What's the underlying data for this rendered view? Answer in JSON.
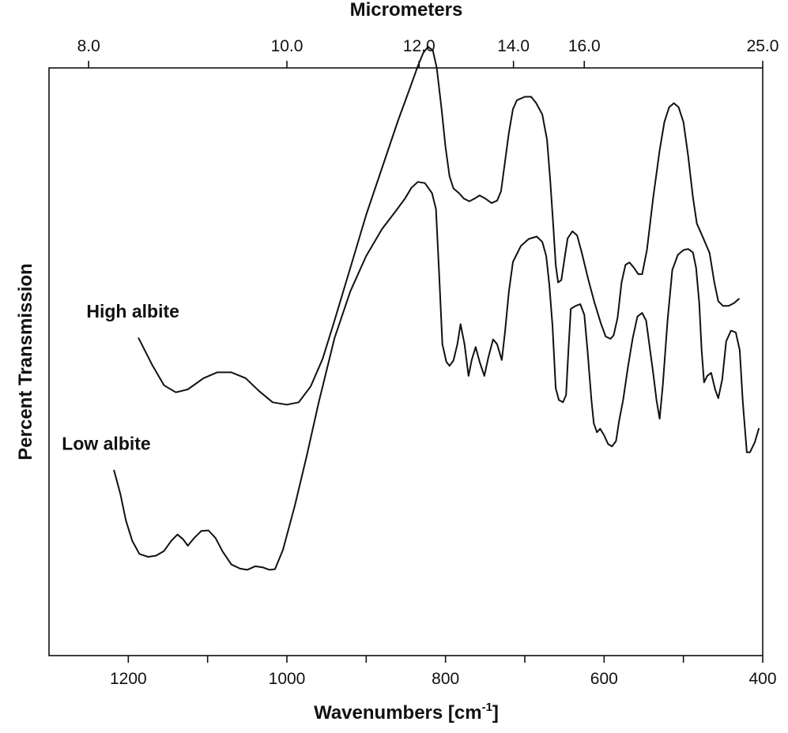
{
  "chart_data": {
    "type": "line",
    "title": "",
    "xlabel": "Wavenumbers [cm",
    "xlabel_sup": "-1",
    "xlabel_end": "]",
    "ylabel": "Percent Transmission",
    "top_axis_label": "Micrometers",
    "xlim": [
      1300,
      400
    ],
    "ylim": [
      0,
      100
    ],
    "grid": false,
    "x_ticks": [
      {
        "value": 1200,
        "label": "1200"
      },
      {
        "value": 1000,
        "label": "1000"
      },
      {
        "value": 800,
        "label": "800"
      },
      {
        "value": 600,
        "label": "600"
      },
      {
        "value": 400,
        "label": "400"
      }
    ],
    "x_minor_ticks": [
      1100,
      900,
      700,
      500
    ],
    "top_ticks": [
      {
        "value": 8.0,
        "label": "8.0"
      },
      {
        "value": 10.0,
        "label": "10.0"
      },
      {
        "value": 12.0,
        "label": "12.0"
      },
      {
        "value": 14.0,
        "label": "14.0"
      },
      {
        "value": 16.0,
        "label": "16.0"
      },
      {
        "value": 25.0,
        "label": "25.0"
      }
    ],
    "series": [
      {
        "name": "High albite",
        "label_anchor": [
          1187,
          54
        ],
        "points": [
          [
            1187,
            54
          ],
          [
            1170,
            49.5
          ],
          [
            1155,
            46
          ],
          [
            1140,
            44.8
          ],
          [
            1125,
            45.3
          ],
          [
            1105,
            47.2
          ],
          [
            1088,
            48.2
          ],
          [
            1070,
            48.2
          ],
          [
            1052,
            47.2
          ],
          [
            1035,
            45
          ],
          [
            1018,
            43.1
          ],
          [
            1000,
            42.7
          ],
          [
            985,
            43.1
          ],
          [
            970,
            45.8
          ],
          [
            955,
            50.5
          ],
          [
            940,
            57
          ],
          [
            920,
            66
          ],
          [
            900,
            75
          ],
          [
            880,
            83
          ],
          [
            860,
            91
          ],
          [
            845,
            96.5
          ],
          [
            835,
            100.3
          ],
          [
            828,
            102.6
          ],
          [
            822,
            103.6
          ],
          [
            816,
            103
          ],
          [
            811,
            100
          ],
          [
            805,
            93
          ],
          [
            800,
            86.5
          ],
          [
            795,
            81.6
          ],
          [
            790,
            79.5
          ],
          [
            783,
            78.7
          ],
          [
            777,
            77.8
          ],
          [
            770,
            77.3
          ],
          [
            763,
            77.8
          ],
          [
            757,
            78.3
          ],
          [
            750,
            77.8
          ],
          [
            742,
            77
          ],
          [
            735,
            77.4
          ],
          [
            730,
            79
          ],
          [
            725,
            84
          ],
          [
            720,
            89
          ],
          [
            715,
            93
          ],
          [
            710,
            94.5
          ],
          [
            700,
            95.1
          ],
          [
            692,
            95.1
          ],
          [
            686,
            94.1
          ],
          [
            678,
            92.1
          ],
          [
            672,
            87.8
          ],
          [
            668,
            81
          ],
          [
            664,
            73
          ],
          [
            661,
            66.5
          ],
          [
            658,
            63.5
          ],
          [
            654,
            63.9
          ],
          [
            650,
            67.5
          ],
          [
            646,
            71
          ],
          [
            640,
            72.2
          ],
          [
            634,
            71.5
          ],
          [
            628,
            68.5
          ],
          [
            620,
            64
          ],
          [
            612,
            60
          ],
          [
            604,
            56.5
          ],
          [
            598,
            54.3
          ],
          [
            592,
            53.9
          ],
          [
            588,
            54.5
          ],
          [
            583,
            57.5
          ],
          [
            578,
            63.5
          ],
          [
            573,
            66.5
          ],
          [
            568,
            66.9
          ],
          [
            563,
            66.1
          ],
          [
            557,
            64.9
          ],
          [
            552,
            64.9
          ],
          [
            546,
            69
          ],
          [
            538,
            78
          ],
          [
            530,
            86
          ],
          [
            524,
            90.8
          ],
          [
            518,
            93.3
          ],
          [
            512,
            94
          ],
          [
            506,
            93.3
          ],
          [
            500,
            90.8
          ],
          [
            494,
            85
          ],
          [
            488,
            78
          ],
          [
            483,
            73.5
          ],
          [
            478,
            72
          ],
          [
            473,
            70.4
          ],
          [
            467,
            68.5
          ],
          [
            461,
            63.5
          ],
          [
            456,
            60.3
          ],
          [
            450,
            59.5
          ],
          [
            443,
            59.5
          ],
          [
            436,
            60
          ],
          [
            430,
            60.7
          ]
        ]
      },
      {
        "name": "Low albite",
        "label_anchor": [
          1218,
          31.5
        ],
        "points": [
          [
            1218,
            31.5
          ],
          [
            1210,
            27.5
          ],
          [
            1203,
            23
          ],
          [
            1195,
            19.5
          ],
          [
            1186,
            17.3
          ],
          [
            1175,
            16.8
          ],
          [
            1165,
            17
          ],
          [
            1155,
            17.8
          ],
          [
            1146,
            19.5
          ],
          [
            1138,
            20.6
          ],
          [
            1131,
            19.8
          ],
          [
            1125,
            18.7
          ],
          [
            1117,
            20
          ],
          [
            1108,
            21.2
          ],
          [
            1099,
            21.3
          ],
          [
            1090,
            20
          ],
          [
            1081,
            17.7
          ],
          [
            1070,
            15.5
          ],
          [
            1059,
            14.8
          ],
          [
            1050,
            14.6
          ],
          [
            1040,
            15.2
          ],
          [
            1030,
            15
          ],
          [
            1022,
            14.6
          ],
          [
            1015,
            14.7
          ],
          [
            1005,
            18
          ],
          [
            990,
            25.5
          ],
          [
            975,
            34
          ],
          [
            960,
            43
          ],
          [
            940,
            54
          ],
          [
            920,
            62
          ],
          [
            900,
            68
          ],
          [
            880,
            72.6
          ],
          [
            863,
            75.6
          ],
          [
            851,
            77.8
          ],
          [
            843,
            79.6
          ],
          [
            835,
            80.6
          ],
          [
            826,
            80.4
          ],
          [
            817,
            78.7
          ],
          [
            812,
            76
          ],
          [
            808,
            65
          ],
          [
            804,
            53
          ],
          [
            799,
            50
          ],
          [
            795,
            49.3
          ],
          [
            790,
            50.2
          ],
          [
            785,
            53
          ],
          [
            781,
            56.4
          ],
          [
            776,
            53
          ],
          [
            771,
            47.6
          ],
          [
            767,
            50.3
          ],
          [
            762,
            52.5
          ],
          [
            757,
            50
          ],
          [
            751,
            47.6
          ],
          [
            746,
            50.7
          ],
          [
            740,
            53.8
          ],
          [
            735,
            53
          ],
          [
            729,
            50.3
          ],
          [
            725,
            55
          ],
          [
            720,
            62
          ],
          [
            715,
            67
          ],
          [
            705,
            69.7
          ],
          [
            695,
            70.9
          ],
          [
            685,
            71.3
          ],
          [
            678,
            70.4
          ],
          [
            673,
            68
          ],
          [
            669,
            63
          ],
          [
            665,
            56
          ],
          [
            661,
            45.5
          ],
          [
            657,
            43.5
          ],
          [
            652,
            43.1
          ],
          [
            648,
            44.3
          ],
          [
            645,
            52
          ],
          [
            642,
            59
          ],
          [
            636,
            59.5
          ],
          [
            630,
            59.8
          ],
          [
            625,
            58
          ],
          [
            621,
            52
          ],
          [
            616,
            43.5
          ],
          [
            613,
            39.5
          ],
          [
            609,
            38
          ],
          [
            605,
            38.6
          ],
          [
            600,
            37.5
          ],
          [
            595,
            36
          ],
          [
            590,
            35.6
          ],
          [
            585,
            36.5
          ],
          [
            581,
            40
          ],
          [
            576,
            43.5
          ],
          [
            570,
            49
          ],
          [
            564,
            54
          ],
          [
            558,
            57.7
          ],
          [
            552,
            58.3
          ],
          [
            547,
            57
          ],
          [
            543,
            53
          ],
          [
            538,
            48
          ],
          [
            534,
            43.5
          ],
          [
            530,
            40.3
          ],
          [
            526,
            46
          ],
          [
            520,
            57
          ],
          [
            514,
            65.6
          ],
          [
            507,
            68.2
          ],
          [
            500,
            69
          ],
          [
            494,
            69.2
          ],
          [
            488,
            68.6
          ],
          [
            484,
            66
          ],
          [
            480,
            60
          ],
          [
            477,
            52
          ],
          [
            474,
            46.5
          ],
          [
            470,
            47.6
          ],
          [
            465,
            48.1
          ],
          [
            460,
            45.3
          ],
          [
            456,
            43.8
          ],
          [
            451,
            47
          ],
          [
            446,
            53.5
          ],
          [
            440,
            55.3
          ],
          [
            434,
            55
          ],
          [
            429,
            52
          ],
          [
            425,
            43
          ],
          [
            420,
            34.6
          ],
          [
            416,
            34.6
          ],
          [
            410,
            36.3
          ],
          [
            405,
            38.6
          ]
        ]
      }
    ]
  }
}
